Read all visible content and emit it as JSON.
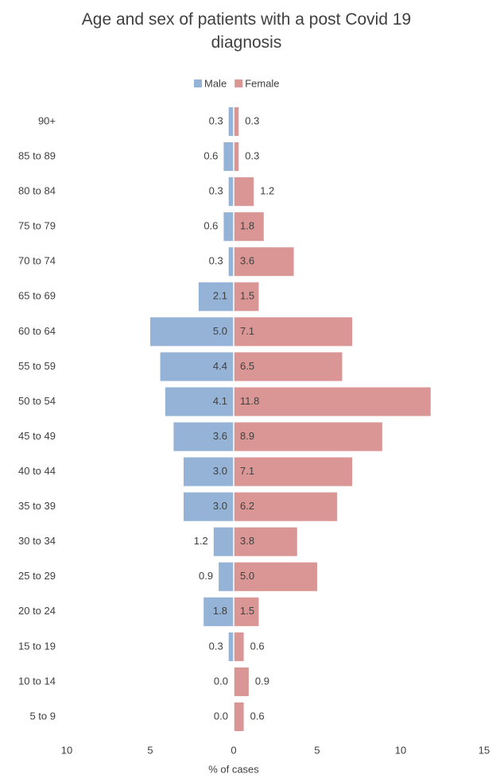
{
  "chart_data": {
    "type": "pyramid",
    "title": "Age and sex of patients with a post Covid 19 diagnosis",
    "x_label": "% of cases",
    "categories": [
      "90+",
      "85 to 89",
      "80 to 84",
      "75 to 79",
      "70 to 74",
      "65 to 69",
      "60 to 64",
      "55 to 59",
      "50 to 54",
      "45 to 49",
      "40 to 44",
      "35 to 39",
      "30 to 34",
      "25 to 29",
      "20 to 24",
      "15 to 19",
      "10 to 14",
      "5 to 9"
    ],
    "series": [
      {
        "name": "Male",
        "color": "#94b3d7",
        "side": "left",
        "values": [
          0.3,
          0.6,
          0.3,
          0.6,
          0.3,
          2.1,
          5.0,
          4.4,
          4.1,
          3.6,
          3.0,
          3.0,
          1.2,
          0.9,
          1.8,
          0.3,
          0.0,
          0.0
        ],
        "value_labels": [
          "0.3",
          "0.6",
          "0.3",
          "0.6",
          "0.3",
          "2.1",
          "5.0",
          "4.4",
          "4.1",
          "3.6",
          "3.0",
          "3.0",
          "1.2",
          "0.9",
          "1.8",
          "0.3",
          "0.0",
          "0.0"
        ]
      },
      {
        "name": "Female",
        "color": "#d99694",
        "side": "right",
        "values": [
          0.3,
          0.3,
          1.2,
          1.8,
          3.6,
          1.5,
          7.1,
          6.5,
          11.8,
          8.9,
          7.1,
          6.2,
          3.8,
          5.0,
          1.5,
          0.6,
          0.9,
          0.6
        ],
        "value_labels": [
          "0.3",
          "0.3",
          "1.2",
          "1.8",
          "3.6",
          "1.5",
          "7.1",
          "6.5",
          "11.8",
          "8.9",
          "7.1",
          "6.2",
          "3.8",
          "5.0",
          "1.5",
          "0.6",
          "0.9",
          "0.6"
        ]
      }
    ],
    "xlim": [
      -10,
      15
    ],
    "xticks": [
      {
        "value": -10,
        "label": "10"
      },
      {
        "value": -5,
        "label": "5"
      },
      0,
      5,
      10,
      15
    ],
    "legend": "top"
  }
}
